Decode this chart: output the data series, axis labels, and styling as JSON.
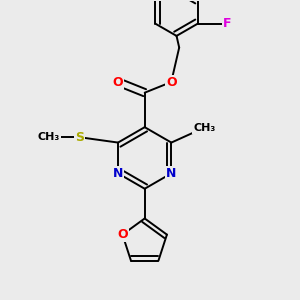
{
  "background_color": "#ebebeb",
  "atom_colors": {
    "C": "#000000",
    "N": "#0000cc",
    "O": "#ff0000",
    "S": "#aaaa00",
    "F": "#dd00dd"
  },
  "bond_color": "#000000",
  "bond_width": 1.4,
  "xlim": [
    -2.5,
    2.5
  ],
  "ylim": [
    -2.8,
    2.8
  ]
}
